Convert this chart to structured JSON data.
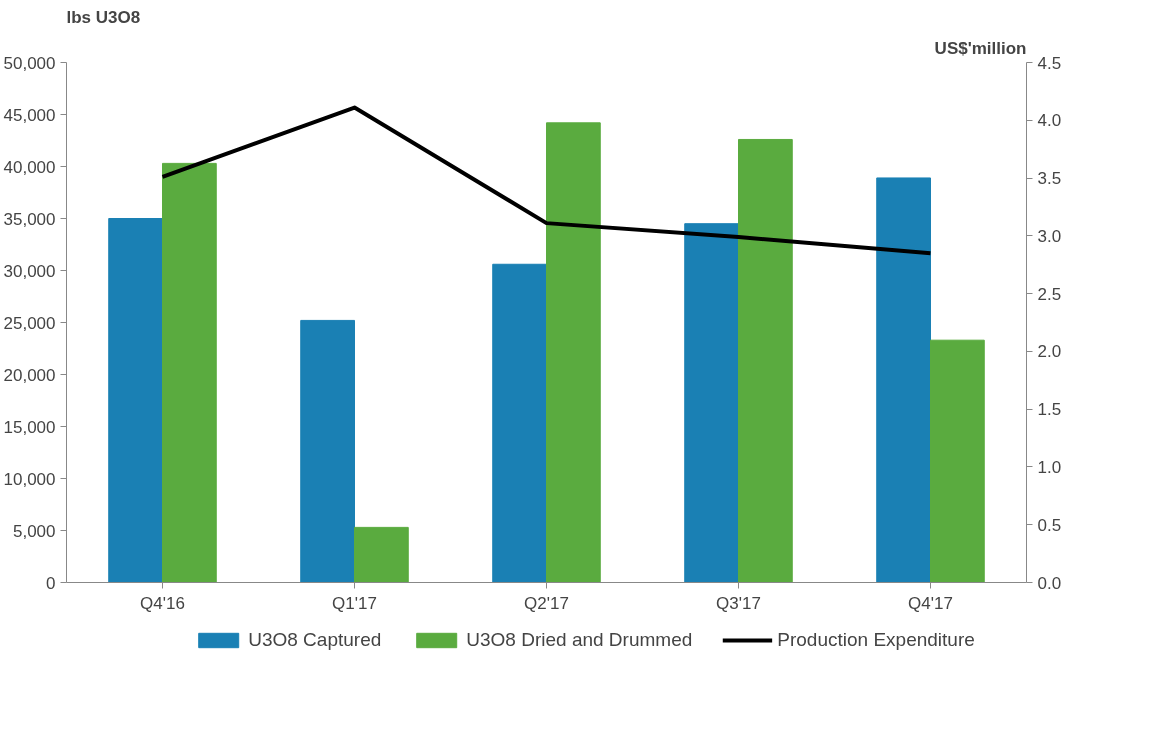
{
  "chart_data": {
    "type": "bar",
    "categories": [
      "Q4'16",
      "Q1'17",
      "Q2'17",
      "Q3'17",
      "Q4'17"
    ],
    "ylabel": "lbs U3O8",
    "y2label": "US$'million",
    "ylim": [
      0,
      50000
    ],
    "yticks": [
      {
        "value": 0,
        "label": "0"
      },
      {
        "value": 5000,
        "label": "5,000"
      },
      {
        "value": 10000,
        "label": "10,000"
      },
      {
        "value": 15000,
        "label": "15,000"
      },
      {
        "value": 20000,
        "label": "20,000"
      },
      {
        "value": 25000,
        "label": "25,000"
      },
      {
        "value": 30000,
        "label": "30,000"
      },
      {
        "value": 35000,
        "label": "35,000"
      },
      {
        "value": 40000,
        "label": "40,000"
      },
      {
        "value": 45000,
        "label": "45,000"
      },
      {
        "value": 50000,
        "label": "50,000"
      }
    ],
    "y2lim": [
      0,
      4.5
    ],
    "y2ticks": [
      {
        "value": 0,
        "label": "0.0"
      },
      {
        "value": 0.5,
        "label": "0.5"
      },
      {
        "value": 1,
        "label": "1.0"
      },
      {
        "value": 1.5,
        "label": "1.5"
      },
      {
        "value": 2,
        "label": "2.0"
      },
      {
        "value": 2.5,
        "label": "2.5"
      },
      {
        "value": 3,
        "label": "3.0"
      },
      {
        "value": 3.5,
        "label": "3.5"
      },
      {
        "value": 4,
        "label": "4.0"
      },
      {
        "value": 4.5,
        "label": "4.5"
      }
    ],
    "series": [
      {
        "name": "U3O8 Captured",
        "color": "#1a80b4",
        "values": [
          35000,
          25200,
          30600,
          34500,
          38900
        ]
      },
      {
        "name": "U3O8 Dried and Drummed",
        "color": "#5aab3f",
        "values": [
          40300,
          5300,
          44200,
          42600,
          23300
        ]
      },
      {
        "name": "Production Expenditure",
        "type": "line",
        "axis": "y2",
        "color": "#000000",
        "values": [
          3.51,
          4.11,
          3.11,
          2.99,
          2.85
        ]
      }
    ],
    "grid": false,
    "legend": "bottom"
  }
}
